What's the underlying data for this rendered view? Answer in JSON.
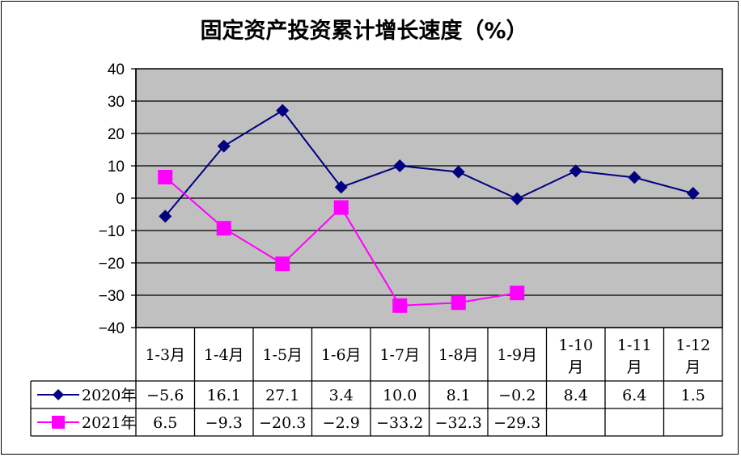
{
  "chart_data": {
    "type": "line",
    "title": "固定资产投资累计增长速度（%）",
    "categories": [
      "1-3月",
      "1-4月",
      "1-5月",
      "1-6月",
      "1-7月",
      "1-8月",
      "1-9月",
      "1-10月",
      "1-11月",
      "1-12月"
    ],
    "category_lines": [
      [
        "1-3月"
      ],
      [
        "1-4月"
      ],
      [
        "1-5月"
      ],
      [
        "1-6月"
      ],
      [
        "1-7月"
      ],
      [
        "1-8月"
      ],
      [
        "1-9月"
      ],
      [
        "1-10",
        "月"
      ],
      [
        "1-11",
        "月"
      ],
      [
        "1-12",
        "月"
      ]
    ],
    "series": [
      {
        "name": "2020年",
        "color": "#000080",
        "marker": "diamond",
        "values": [
          -5.6,
          16.1,
          27.1,
          3.4,
          10.0,
          8.1,
          -0.2,
          8.4,
          6.4,
          1.5
        ],
        "labels": [
          "-5.6",
          "16.1",
          "27.1",
          "3.4",
          "10.0",
          "8.1",
          "-0.2",
          "8.4",
          "6.4",
          "1.5"
        ]
      },
      {
        "name": "2021年",
        "color": "#ff00ff",
        "marker": "square",
        "values": [
          6.5,
          -9.3,
          -20.3,
          -2.9,
          -33.2,
          -32.3,
          -29.3,
          null,
          null,
          null
        ],
        "labels": [
          "6.5",
          "-9.3",
          "-20.3",
          "-2.9",
          "-33.2",
          "-32.3",
          "-29.3",
          "",
          "",
          ""
        ]
      }
    ],
    "yticks": [
      "40",
      "30",
      "20",
      "10",
      "0",
      "-10",
      "-20",
      "-30",
      "-40"
    ],
    "ylim": [
      -40,
      40
    ],
    "grid": true,
    "plot_background": "#c0c0c0",
    "legend": "data-table"
  }
}
